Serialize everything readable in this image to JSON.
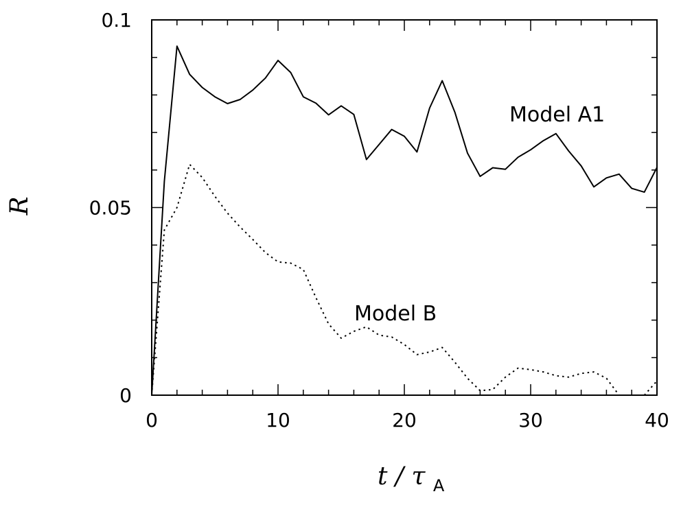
{
  "chart_data": {
    "type": "line",
    "xlabel": "t/τA",
    "xlabel_parts": {
      "var": "t",
      "slash": "/",
      "tau": "τ",
      "sub": "A"
    },
    "ylabel": "R",
    "xlim": [
      0,
      40
    ],
    "ylim": [
      0,
      0.1
    ],
    "xticks": [
      0,
      10,
      20,
      30,
      40
    ],
    "xtick_labels": [
      "0",
      "10",
      "20",
      "30",
      "40"
    ],
    "yticks": [
      0,
      0.05,
      0.1
    ],
    "ytick_labels": [
      "0",
      "0.05",
      "0.1"
    ],
    "grid": false,
    "legend": "none",
    "annotations": [
      "Model A1",
      "Model B"
    ],
    "series": [
      {
        "name": "Model A1",
        "style": "solid",
        "color": "#000000",
        "x": [
          0,
          1,
          2,
          3,
          4,
          5,
          6,
          7,
          8,
          9,
          10,
          11,
          12,
          13,
          14,
          15,
          16,
          17,
          18,
          19,
          20,
          21,
          22,
          23,
          24,
          25,
          26,
          27,
          28,
          29,
          30,
          31,
          32,
          33,
          34,
          35,
          36,
          37,
          38,
          39,
          40
        ],
        "values": [
          0,
          0.057,
          0.093,
          0.0855,
          0.082,
          0.0795,
          0.0777,
          0.0788,
          0.0813,
          0.0845,
          0.0892,
          0.086,
          0.0795,
          0.0778,
          0.0747,
          0.0771,
          0.0748,
          0.0628,
          0.0668,
          0.0708,
          0.069,
          0.0648,
          0.0765,
          0.0838,
          0.0754,
          0.0645,
          0.0583,
          0.0606,
          0.0602,
          0.0634,
          0.0654,
          0.0678,
          0.0697,
          0.0651,
          0.0611,
          0.0555,
          0.0579,
          0.0589,
          0.0551,
          0.0541,
          0.0607
        ]
      },
      {
        "name": "Model B",
        "style": "dotted",
        "color": "#000000",
        "x": [
          0,
          1,
          2,
          3,
          4,
          5,
          6,
          7,
          8,
          9,
          10,
          11,
          12,
          13,
          14,
          15,
          16,
          17,
          18,
          19,
          20,
          21,
          22,
          23,
          24,
          25,
          26,
          27,
          28,
          29,
          30,
          31,
          32,
          33,
          34,
          35,
          36,
          37,
          38,
          39,
          40
        ],
        "values": [
          0,
          0.044,
          0.05,
          0.0615,
          0.058,
          0.053,
          0.0485,
          0.0448,
          0.0415,
          0.038,
          0.0355,
          0.0352,
          0.0335,
          0.026,
          0.019,
          0.0152,
          0.017,
          0.0182,
          0.016,
          0.0155,
          0.0135,
          0.0108,
          0.0115,
          0.0127,
          0.0088,
          0.0045,
          0.0012,
          0.0015,
          0.0048,
          0.0072,
          0.0068,
          0.0062,
          0.0052,
          0.0048,
          0.0058,
          0.0062,
          0.0045,
          0.0,
          0.0,
          0.0,
          0.0038
        ]
      }
    ]
  }
}
